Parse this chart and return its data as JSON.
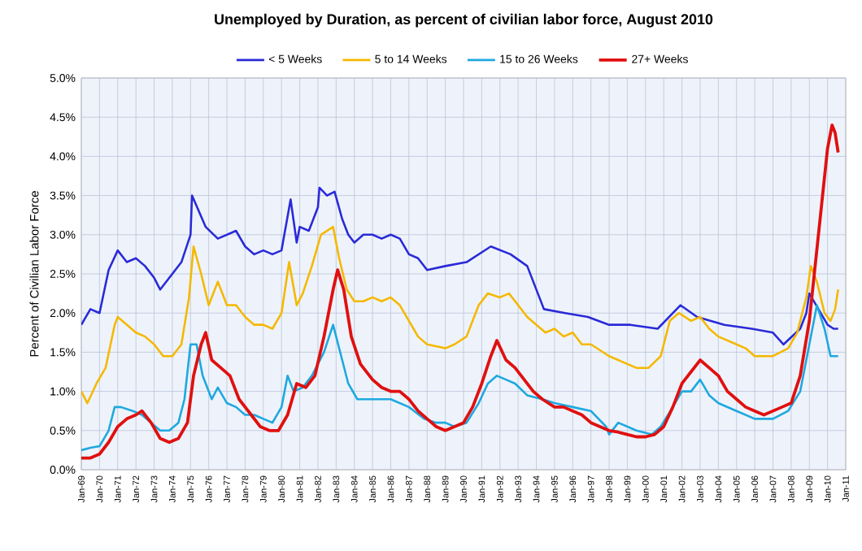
{
  "chart_data": {
    "type": "line",
    "title": "Unemployed by Duration, as percent of civilian labor force, August 2010",
    "ylabel": "Percent of Civilian Labor Force",
    "xlim": [
      "1969-01",
      "2011-01"
    ],
    "ylim": [
      0,
      5
    ],
    "xticks": [
      {
        "value": "1969-01",
        "label": "Jan-69"
      },
      {
        "value": "1970-01",
        "label": "Jan-70"
      },
      {
        "value": "1971-01",
        "label": "Jan-71"
      },
      {
        "value": "1972-01",
        "label": "Jan-72"
      },
      {
        "value": "1973-01",
        "label": "Jan-73"
      },
      {
        "value": "1974-01",
        "label": "Jan-74"
      },
      {
        "value": "1975-01",
        "label": "Jan-75"
      },
      {
        "value": "1976-01",
        "label": "Jan-76"
      },
      {
        "value": "1977-01",
        "label": "Jan-77"
      },
      {
        "value": "1978-01",
        "label": "Jan-78"
      },
      {
        "value": "1979-01",
        "label": "Jan-79"
      },
      {
        "value": "1980-01",
        "label": "Jan-80"
      },
      {
        "value": "1981-01",
        "label": "Jan-81"
      },
      {
        "value": "1982-01",
        "label": "Jan-82"
      },
      {
        "value": "1983-01",
        "label": "Jan-83"
      },
      {
        "value": "1984-01",
        "label": "Jan-84"
      },
      {
        "value": "1985-01",
        "label": "Jan-85"
      },
      {
        "value": "1986-01",
        "label": "Jan-86"
      },
      {
        "value": "1987-01",
        "label": "Jan-87"
      },
      {
        "value": "1988-01",
        "label": "Jan-88"
      },
      {
        "value": "1989-01",
        "label": "Jan-89"
      },
      {
        "value": "1990-01",
        "label": "Jan-90"
      },
      {
        "value": "1991-01",
        "label": "Jan-91"
      },
      {
        "value": "1992-01",
        "label": "Jan-92"
      },
      {
        "value": "1993-01",
        "label": "Jan-93"
      },
      {
        "value": "1994-01",
        "label": "Jan-94"
      },
      {
        "value": "1995-01",
        "label": "Jan-95"
      },
      {
        "value": "1996-01",
        "label": "Jan-96"
      },
      {
        "value": "1997-01",
        "label": "Jan-97"
      },
      {
        "value": "1998-01",
        "label": "Jan-98"
      },
      {
        "value": "1999-01",
        "label": "Jan-99"
      },
      {
        "value": "2000-01",
        "label": "Jan-00"
      },
      {
        "value": "2001-01",
        "label": "Jan-01"
      },
      {
        "value": "2002-01",
        "label": "Jan-02"
      },
      {
        "value": "2003-01",
        "label": "Jan-03"
      },
      {
        "value": "2004-01",
        "label": "Jan-04"
      },
      {
        "value": "2005-01",
        "label": "Jan-05"
      },
      {
        "value": "2006-01",
        "label": "Jan-06"
      },
      {
        "value": "2007-01",
        "label": "Jan-07"
      },
      {
        "value": "2008-01",
        "label": "Jan-08"
      },
      {
        "value": "2009-01",
        "label": "Jan-09"
      },
      {
        "value": "2010-01",
        "label": "Jan-10"
      },
      {
        "value": "2011-01",
        "label": "Jan-11"
      }
    ],
    "yticks": [
      {
        "value": 0,
        "label": "0.0%"
      },
      {
        "value": 0.5,
        "label": "0.5%"
      },
      {
        "value": 1,
        "label": "1.0%"
      },
      {
        "value": 1.5,
        "label": "1.5%"
      },
      {
        "value": 2,
        "label": "2.0%"
      },
      {
        "value": 2.5,
        "label": "2.5%"
      },
      {
        "value": 3,
        "label": "3.0%"
      },
      {
        "value": 3.5,
        "label": "3.5%"
      },
      {
        "value": 4,
        "label": "4.0%"
      },
      {
        "value": 4.5,
        "label": "4.5%"
      },
      {
        "value": 5,
        "label": "5.0%"
      }
    ],
    "grid": true,
    "legend": "top",
    "series": [
      {
        "name": "< 5 Weeks",
        "color": "#2a2ad8",
        "x": [
          "1969-01",
          "1969-07",
          "1970-01",
          "1970-07",
          "1971-01",
          "1971-07",
          "1972-01",
          "1972-07",
          "1973-01",
          "1973-05",
          "1974-01",
          "1974-07",
          "1975-01",
          "1975-02",
          "1975-11",
          "1976-07",
          "1977-01",
          "1977-07",
          "1978-01",
          "1978-07",
          "1979-01",
          "1979-07",
          "1980-01",
          "1980-07",
          "1980-11",
          "1981-01",
          "1981-07",
          "1982-01",
          "1982-02",
          "1982-07",
          "1982-12",
          "1983-05",
          "1983-09",
          "1984-01",
          "1984-07",
          "1985-01",
          "1985-07",
          "1986-01",
          "1986-07",
          "1987-01",
          "1987-07",
          "1988-01",
          "1989-01",
          "1990-03",
          "1991-07",
          "1992-08",
          "1993-07",
          "1994-06",
          "1995-08",
          "1996-11",
          "1998-01",
          "1999-03",
          "2000-09",
          "2001-12",
          "2002-11",
          "2004-05",
          "2005-11",
          "2007-01",
          "2007-08",
          "2008-07",
          "2008-11",
          "2009-01",
          "2009-07",
          "2010-01",
          "2010-05",
          "2010-08"
        ],
        "values": [
          1.85,
          2.05,
          2.0,
          2.55,
          2.8,
          2.65,
          2.7,
          2.6,
          2.45,
          2.3,
          2.5,
          2.65,
          3.0,
          3.5,
          3.1,
          2.95,
          3.0,
          3.05,
          2.85,
          2.75,
          2.8,
          2.75,
          2.8,
          3.45,
          2.9,
          3.1,
          3.05,
          3.35,
          3.6,
          3.5,
          3.55,
          3.2,
          3.0,
          2.9,
          3.0,
          3.0,
          2.95,
          3.0,
          2.95,
          2.75,
          2.7,
          2.55,
          2.6,
          2.65,
          2.85,
          2.75,
          2.6,
          2.05,
          2.0,
          1.95,
          1.85,
          1.85,
          1.8,
          2.1,
          1.95,
          1.85,
          1.8,
          1.75,
          1.6,
          1.8,
          2.0,
          2.25,
          2.05,
          1.85,
          1.8,
          1.8
        ]
      },
      {
        "name": "5 to 14 Weeks",
        "color": "#f5b800",
        "x": [
          "1969-01",
          "1969-05",
          "1969-11",
          "1970-05",
          "1970-11",
          "1971-01",
          "1971-07",
          "1972-01",
          "1972-07",
          "1973-01",
          "1973-07",
          "1974-01",
          "1974-07",
          "1974-12",
          "1975-03",
          "1975-08",
          "1976-01",
          "1976-07",
          "1977-01",
          "1977-07",
          "1978-01",
          "1978-07",
          "1979-01",
          "1979-07",
          "1980-01",
          "1980-06",
          "1980-11",
          "1981-03",
          "1981-09",
          "1982-03",
          "1982-11",
          "1983-03",
          "1983-08",
          "1984-01",
          "1984-07",
          "1985-01",
          "1985-07",
          "1986-01",
          "1986-07",
          "1987-01",
          "1987-07",
          "1988-01",
          "1989-01",
          "1989-07",
          "1990-03",
          "1990-11",
          "1991-05",
          "1992-01",
          "1992-07",
          "1993-01",
          "1993-07",
          "1994-01",
          "1994-07",
          "1995-01",
          "1995-07",
          "1996-01",
          "1996-07",
          "1997-01",
          "1998-01",
          "1998-07",
          "1999-07",
          "2000-03",
          "2000-11",
          "2001-05",
          "2001-11",
          "2002-07",
          "2003-01",
          "2003-07",
          "2004-01",
          "2005-01",
          "2005-07",
          "2006-01",
          "2007-01",
          "2007-11",
          "2008-05",
          "2008-11",
          "2009-02",
          "2009-06",
          "2009-11",
          "2010-03",
          "2010-06",
          "2010-08"
        ],
        "values": [
          1.0,
          0.85,
          1.1,
          1.3,
          1.85,
          1.95,
          1.85,
          1.75,
          1.7,
          1.6,
          1.45,
          1.45,
          1.6,
          2.2,
          2.85,
          2.5,
          2.1,
          2.4,
          2.1,
          2.1,
          1.95,
          1.85,
          1.85,
          1.8,
          2.0,
          2.65,
          2.1,
          2.25,
          2.6,
          3.0,
          3.1,
          2.7,
          2.3,
          2.15,
          2.15,
          2.2,
          2.15,
          2.2,
          2.1,
          1.9,
          1.7,
          1.6,
          1.55,
          1.6,
          1.7,
          2.1,
          2.25,
          2.2,
          2.25,
          2.1,
          1.95,
          1.85,
          1.75,
          1.8,
          1.7,
          1.75,
          1.6,
          1.6,
          1.45,
          1.4,
          1.3,
          1.3,
          1.45,
          1.9,
          2.0,
          1.9,
          1.95,
          1.8,
          1.7,
          1.6,
          1.55,
          1.45,
          1.45,
          1.55,
          1.75,
          2.2,
          2.6,
          2.4,
          2.0,
          1.9,
          2.05,
          2.3
        ]
      },
      {
        "name": "15 to 26 Weeks",
        "color": "#1ea8e0",
        "x": [
          "1969-01",
          "1969-07",
          "1970-01",
          "1970-07",
          "1970-11",
          "1971-03",
          "1971-11",
          "1972-05",
          "1972-11",
          "1973-05",
          "1973-11",
          "1974-05",
          "1974-09",
          "1975-01",
          "1975-05",
          "1975-09",
          "1976-03",
          "1976-07",
          "1977-01",
          "1977-07",
          "1978-01",
          "1978-07",
          "1979-01",
          "1979-07",
          "1980-01",
          "1980-05",
          "1980-09",
          "1981-03",
          "1981-09",
          "1982-05",
          "1982-11",
          "1983-05",
          "1983-09",
          "1984-03",
          "1985-01",
          "1986-01",
          "1987-01",
          "1987-11",
          "1988-07",
          "1989-01",
          "1989-07",
          "1990-03",
          "1990-11",
          "1991-05",
          "1991-11",
          "1992-05",
          "1992-11",
          "1993-07",
          "1994-05",
          "1995-01",
          "1996-01",
          "1997-01",
          "1997-11",
          "1998-01",
          "1998-07",
          "1999-07",
          "2000-05",
          "2000-11",
          "2001-07",
          "2002-01",
          "2002-07",
          "2003-01",
          "2003-07",
          "2004-01",
          "2005-01",
          "2006-01",
          "2007-01",
          "2007-11",
          "2008-07",
          "2009-01",
          "2009-06",
          "2009-11",
          "2010-03",
          "2010-08"
        ],
        "values": [
          0.25,
          0.28,
          0.3,
          0.5,
          0.8,
          0.8,
          0.75,
          0.7,
          0.6,
          0.5,
          0.5,
          0.6,
          0.9,
          1.6,
          1.6,
          1.2,
          0.9,
          1.05,
          0.85,
          0.8,
          0.7,
          0.7,
          0.65,
          0.6,
          0.8,
          1.2,
          1.0,
          1.05,
          1.2,
          1.5,
          1.85,
          1.4,
          1.1,
          0.9,
          0.9,
          0.9,
          0.8,
          0.65,
          0.6,
          0.6,
          0.55,
          0.6,
          0.85,
          1.1,
          1.2,
          1.15,
          1.1,
          0.95,
          0.9,
          0.85,
          0.8,
          0.75,
          0.55,
          0.45,
          0.6,
          0.5,
          0.45,
          0.55,
          0.8,
          1.0,
          1.0,
          1.15,
          0.95,
          0.85,
          0.75,
          0.65,
          0.65,
          0.75,
          1.0,
          1.6,
          2.1,
          1.8,
          1.45,
          1.45
        ]
      },
      {
        "name": "27+ Weeks",
        "color": "#e01010",
        "x": [
          "1969-01",
          "1969-07",
          "1970-01",
          "1970-07",
          "1971-01",
          "1971-07",
          "1972-01",
          "1972-05",
          "1972-11",
          "1973-05",
          "1973-11",
          "1974-05",
          "1974-11",
          "1975-03",
          "1975-08",
          "1975-11",
          "1976-03",
          "1976-09",
          "1977-03",
          "1977-09",
          "1978-05",
          "1978-11",
          "1979-05",
          "1979-11",
          "1980-05",
          "1980-11",
          "1981-05",
          "1981-11",
          "1982-05",
          "1982-11",
          "1983-02",
          "1983-06",
          "1983-11",
          "1984-05",
          "1985-01",
          "1985-07",
          "1986-01",
          "1986-07",
          "1987-01",
          "1987-07",
          "1988-01",
          "1988-07",
          "1989-01",
          "1989-07",
          "1990-01",
          "1990-07",
          "1991-01",
          "1991-07",
          "1991-11",
          "1992-05",
          "1992-11",
          "1993-05",
          "1993-11",
          "1994-05",
          "1995-01",
          "1995-07",
          "1996-01",
          "1996-07",
          "1997-01",
          "1997-07",
          "1998-01",
          "1998-07",
          "1999-01",
          "1999-07",
          "2000-01",
          "2000-07",
          "2001-01",
          "2001-07",
          "2002-01",
          "2002-07",
          "2003-01",
          "2003-07",
          "2004-01",
          "2004-07",
          "2005-01",
          "2005-07",
          "2006-01",
          "2006-07",
          "2007-01",
          "2007-07",
          "2008-01",
          "2008-07",
          "2009-01",
          "2009-07",
          "2010-01",
          "2010-04",
          "2010-06",
          "2010-08"
        ],
        "values": [
          0.15,
          0.15,
          0.2,
          0.35,
          0.55,
          0.65,
          0.7,
          0.75,
          0.6,
          0.4,
          0.35,
          0.4,
          0.6,
          1.2,
          1.6,
          1.75,
          1.4,
          1.3,
          1.2,
          0.9,
          0.7,
          0.55,
          0.5,
          0.5,
          0.7,
          1.1,
          1.05,
          1.2,
          1.7,
          2.3,
          2.55,
          2.3,
          1.7,
          1.35,
          1.15,
          1.05,
          1.0,
          1.0,
          0.9,
          0.75,
          0.65,
          0.55,
          0.5,
          0.55,
          0.6,
          0.8,
          1.1,
          1.45,
          1.65,
          1.4,
          1.3,
          1.15,
          1.0,
          0.9,
          0.8,
          0.8,
          0.75,
          0.7,
          0.6,
          0.55,
          0.5,
          0.48,
          0.45,
          0.42,
          0.42,
          0.45,
          0.55,
          0.8,
          1.1,
          1.25,
          1.4,
          1.3,
          1.2,
          1.0,
          0.9,
          0.8,
          0.75,
          0.7,
          0.75,
          0.8,
          0.85,
          1.2,
          1.9,
          3.0,
          4.1,
          4.4,
          4.3,
          4.05
        ]
      }
    ]
  }
}
